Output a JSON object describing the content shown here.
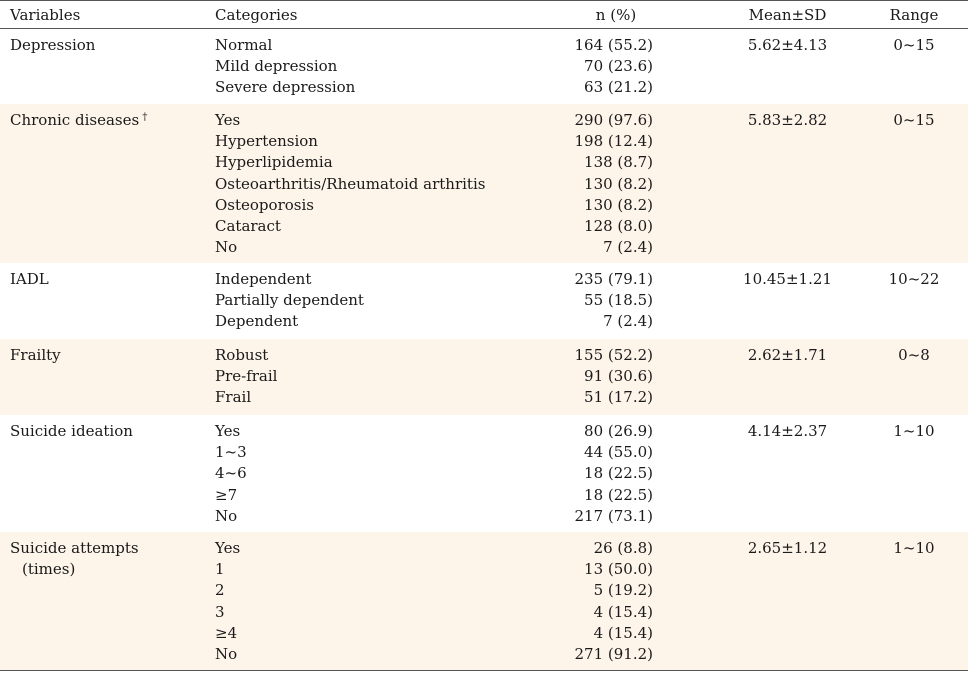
{
  "header": {
    "variables": "Variables",
    "categories": "Categories",
    "n": "n (%)",
    "mean": "Mean±SD",
    "range": "Range"
  },
  "groups": [
    {
      "variable": "Depression",
      "variable_line2": "",
      "sup": "",
      "mean": "5.62±4.13",
      "range": "0~15",
      "categories": [
        "Normal",
        "Mild depression",
        "Severe depression"
      ],
      "n": [
        "164 (55.2)",
        "70 (23.6)",
        "63 (21.2)"
      ]
    },
    {
      "variable": "Chronic diseases",
      "variable_line2": "",
      "sup": "†",
      "mean": "5.83±2.82",
      "range": "0~15",
      "categories": [
        "Yes",
        "Hypertension",
        "Hyperlipidemia",
        "Osteoarthritis/Rheumatoid arthritis",
        "Osteoporosis",
        "Cataract",
        "No"
      ],
      "n": [
        "290 (97.6)",
        "198 (12.4)",
        "138 (8.7)",
        "130 (8.2)",
        "130 (8.2)",
        "128 (8.0)",
        "7 (2.4)"
      ]
    },
    {
      "variable": "IADL",
      "variable_line2": "",
      "sup": "",
      "mean": "10.45±1.21",
      "range": "10~22",
      "categories": [
        "Independent",
        "Partially dependent",
        "Dependent"
      ],
      "n": [
        "235 (79.1)",
        "55 (18.5)",
        "7 (2.4)"
      ]
    },
    {
      "variable": "Frailty",
      "variable_line2": "",
      "sup": "",
      "mean": "2.62±1.71",
      "range": "0~8",
      "categories": [
        "Robust",
        "Pre-frail",
        "Frail"
      ],
      "n": [
        "155 (52.2)",
        "91 (30.6)",
        "51 (17.2)"
      ]
    },
    {
      "variable": "Suicide ideation",
      "variable_line2": "",
      "sup": "",
      "mean": "4.14±2.37",
      "range": "1~10",
      "categories": [
        "Yes",
        "1~3",
        "4~6",
        "≥7",
        "No"
      ],
      "n": [
        "80 (26.9)",
        "44 (55.0)",
        "18 (22.5)",
        "18 (22.5)",
        "217 (73.1)"
      ]
    },
    {
      "variable": "Suicide attempts",
      "variable_line2": "(times)",
      "sup": "",
      "mean": "2.65±1.12",
      "range": "1~10",
      "categories": [
        "Yes",
        "1",
        "2",
        "3",
        "≥4",
        "No"
      ],
      "n": [
        "26 (8.8)",
        "13 (50.0)",
        "5 (19.2)",
        "4 (15.4)",
        "4 (15.4)",
        "271 (91.2)"
      ]
    }
  ]
}
